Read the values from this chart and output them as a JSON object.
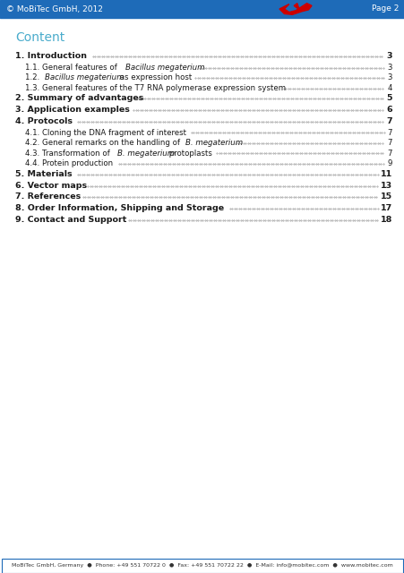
{
  "header_color": "#1E6BB8",
  "header_text_left": "© MoBiTec GmbH, 2012",
  "header_text_right": "Page 2",
  "header_text_color": "#FFFFFF",
  "content_title": "Content",
  "content_title_color": "#4AACCC",
  "toc_entries": [
    {
      "bold": true,
      "text_parts": [
        {
          "text": "1. Introduction",
          "italic": false
        }
      ],
      "page": "3",
      "indent": 0
    },
    {
      "bold": false,
      "text_parts": [
        {
          "text": "1.1. General features of ",
          "italic": false
        },
        {
          "text": "Bacillus megaterium",
          "italic": true
        }
      ],
      "page": "3",
      "indent": 1
    },
    {
      "bold": false,
      "text_parts": [
        {
          "text": "1.2. ",
          "italic": false
        },
        {
          "text": "Bacillus megaterium",
          "italic": true
        },
        {
          "text": " as expression host",
          "italic": false
        }
      ],
      "page": "3",
      "indent": 1
    },
    {
      "bold": false,
      "text_parts": [
        {
          "text": "1.3. General features of the T7 RNA polymerase expression system",
          "italic": false
        }
      ],
      "page": "4",
      "indent": 1
    },
    {
      "bold": true,
      "text_parts": [
        {
          "text": "2. Summary of advantages",
          "italic": false
        }
      ],
      "page": "5",
      "indent": 0
    },
    {
      "bold": true,
      "text_parts": [
        {
          "text": "3. Application examples",
          "italic": false
        }
      ],
      "page": "6",
      "indent": 0
    },
    {
      "bold": true,
      "text_parts": [
        {
          "text": "4. Protocols",
          "italic": false
        }
      ],
      "page": "7",
      "indent": 0
    },
    {
      "bold": false,
      "text_parts": [
        {
          "text": "4.1. Cloning the DNA fragment of interest",
          "italic": false
        }
      ],
      "page": "7",
      "indent": 1
    },
    {
      "bold": false,
      "text_parts": [
        {
          "text": "4.2. General remarks on the handling of ",
          "italic": false
        },
        {
          "text": "B. megaterium",
          "italic": true
        }
      ],
      "page": "7",
      "indent": 1
    },
    {
      "bold": false,
      "text_parts": [
        {
          "text": "4.3. Transformation of ",
          "italic": false
        },
        {
          "text": "B. megaterium",
          "italic": true
        },
        {
          "text": " protoplasts",
          "italic": false
        }
      ],
      "page": "7",
      "indent": 1
    },
    {
      "bold": false,
      "text_parts": [
        {
          "text": "4.4. Protein production",
          "italic": false
        }
      ],
      "page": "9",
      "indent": 1
    },
    {
      "bold": true,
      "text_parts": [
        {
          "text": "5. Materials",
          "italic": false
        }
      ],
      "page": "11",
      "indent": 0
    },
    {
      "bold": true,
      "text_parts": [
        {
          "text": "6. Vector maps",
          "italic": false
        }
      ],
      "page": "13",
      "indent": 0
    },
    {
      "bold": true,
      "text_parts": [
        {
          "text": "7. References",
          "italic": false
        }
      ],
      "page": "15",
      "indent": 0
    },
    {
      "bold": true,
      "text_parts": [
        {
          "text": "8. Order Information, Shipping and Storage",
          "italic": false
        }
      ],
      "page": "17",
      "indent": 0
    },
    {
      "bold": true,
      "text_parts": [
        {
          "text": "9. Contact and Support",
          "italic": false
        }
      ],
      "page": "18",
      "indent": 0
    }
  ],
  "footer_text": "MoBiTec GmbH, Germany  ●  Phone: +49 551 70722 0  ●  Fax: +49 551 70722 22  ●  E-Mail: info@mobitec.com  ●  www.mobitec.com",
  "background_color": "#FFFFFF",
  "text_color": "#1A1A1A",
  "dot_color": "#888888",
  "dolphin_color": "#CC0000",
  "footer_border_color": "#1E6BB8"
}
